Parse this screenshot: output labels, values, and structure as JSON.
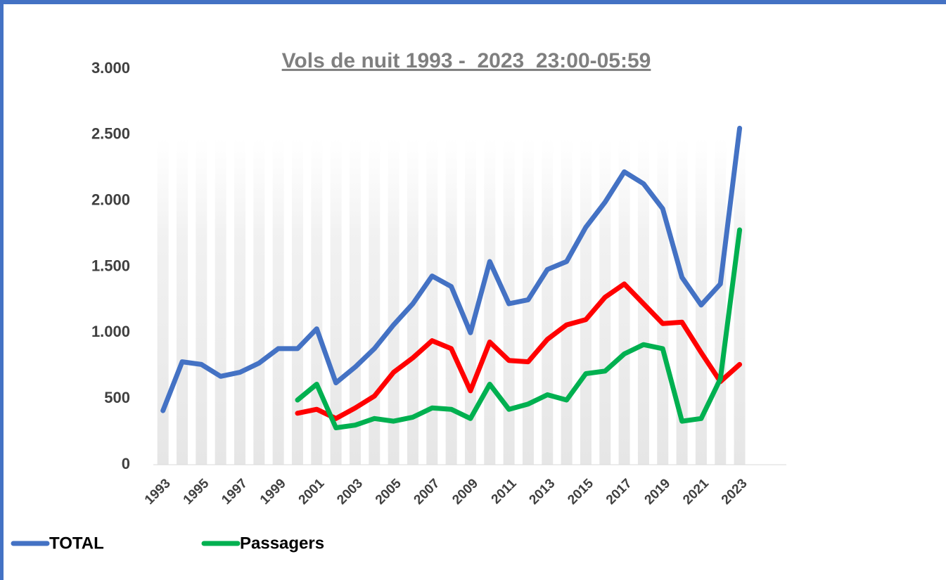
{
  "chart_data": {
    "type": "line",
    "title": "Vols de nuit 1993 -  2023  23:00-05:59",
    "categories": [
      "1993",
      null,
      "1995",
      null,
      "1997",
      null,
      "1999",
      null,
      "2001",
      null,
      "2003",
      null,
      "2005",
      null,
      "2007",
      null,
      "2009",
      null,
      "2011",
      null,
      "2013",
      null,
      "2015",
      null,
      "2017",
      null,
      "2019",
      null,
      "2021",
      null,
      "2023"
    ],
    "series": [
      {
        "name": "TOTAL",
        "color": "#4472c4",
        "values": [
          410,
          780,
          760,
          670,
          700,
          770,
          880,
          880,
          1030,
          620,
          740,
          880,
          1060,
          1220,
          1430,
          1350,
          1000,
          1540,
          1220,
          1250,
          1480,
          1540,
          1800,
          1990,
          2220,
          2130,
          1940,
          1420,
          1210,
          1370,
          2550
        ]
      },
      {
        "color": "#ff0000",
        "values": [
          null,
          null,
          null,
          null,
          null,
          null,
          null,
          390,
          420,
          350,
          430,
          520,
          700,
          810,
          940,
          880,
          560,
          930,
          790,
          780,
          950,
          1060,
          1100,
          1270,
          1370,
          1220,
          1070,
          1080,
          850,
          630,
          760
        ]
      },
      {
        "name": "Passagers",
        "color": "#00b050",
        "values": [
          null,
          null,
          null,
          null,
          null,
          null,
          null,
          490,
          610,
          280,
          300,
          350,
          330,
          360,
          430,
          420,
          350,
          610,
          420,
          460,
          530,
          490,
          690,
          710,
          840,
          910,
          880,
          330,
          350,
          650,
          1780
        ]
      }
    ],
    "ylim": [
      0,
      3000
    ],
    "yticks": [
      0,
      500,
      {
        "value": 1000,
        "label": "1.000"
      },
      {
        "value": 1500,
        "label": "1.500"
      },
      {
        "value": 2000,
        "label": "2.000"
      },
      {
        "value": 2500,
        "label": "2.500"
      },
      {
        "value": 3000,
        "label": "3.000"
      }
    ]
  }
}
